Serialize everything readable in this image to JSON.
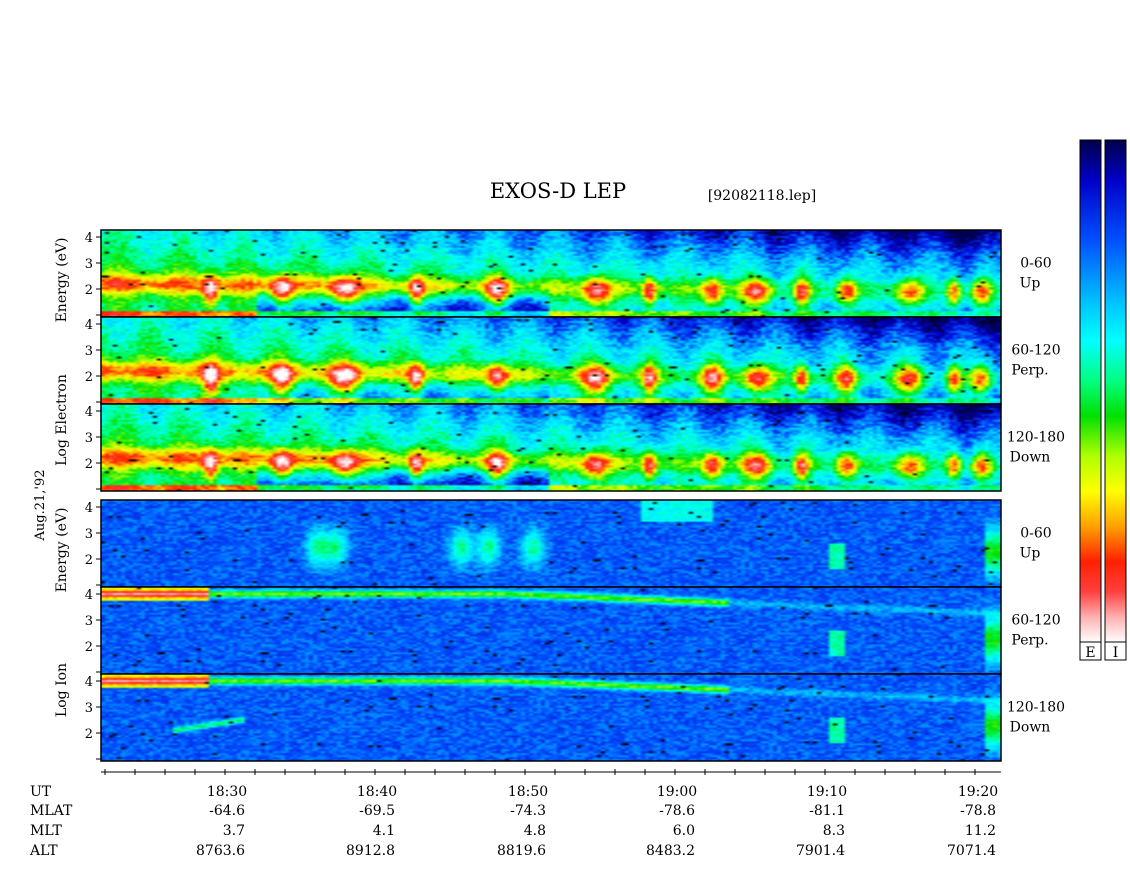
{
  "chart_data": {
    "type": "heatmap",
    "title": "EXOS-D LEP",
    "file_label": "[92082118.lep]",
    "date_label": "Aug.21,'92",
    "x_axis": {
      "time_ticks": [
        "18:30",
        "18:40",
        "18:50",
        "19:00",
        "19:10",
        "19:20"
      ],
      "rows": [
        {
          "label": "UT",
          "values": []
        },
        {
          "label": "MLAT",
          "values": [
            "-64.6",
            "-69.5",
            "-74.3",
            "-78.6",
            "-81.1",
            "-78.8"
          ]
        },
        {
          "label": "MLT",
          "values": [
            "3.7",
            "4.1",
            "4.8",
            "6.0",
            "8.3",
            "11.2"
          ]
        },
        {
          "label": "ALT",
          "values": [
            "8763.6",
            "8912.8",
            "8819.6",
            "8483.2",
            "7901.4",
            "7071.4"
          ]
        }
      ]
    },
    "y_ticks": [
      "1",
      "2",
      "3",
      "4"
    ],
    "groups": [
      {
        "name": "Electron",
        "ylabel_words": [
          "Log",
          "Electron",
          "Energy",
          "(eV)"
        ],
        "panels": [
          {
            "pitch": "0-60",
            "direction": "Up"
          },
          {
            "pitch": "60-120",
            "direction": "Perp."
          },
          {
            "pitch": "120-180",
            "direction": "Down"
          }
        ]
      },
      {
        "name": "Ion",
        "ylabel_words": [
          "Log",
          "Ion",
          "Energy",
          "(eV)"
        ],
        "panels": [
          {
            "pitch": "0-60",
            "direction": "Up"
          },
          {
            "pitch": "60-120",
            "direction": "Perp."
          },
          {
            "pitch": "120-180",
            "direction": "Down"
          }
        ]
      }
    ],
    "colorbars": [
      {
        "label": "E"
      },
      {
        "label": "I"
      }
    ],
    "colormap": [
      "#00004a",
      "#0000c8",
      "#0050ff",
      "#00c8ff",
      "#00ffff",
      "#00ff80",
      "#00e000",
      "#b0ff00",
      "#ffff00",
      "#ffa000",
      "#ff2000",
      "#ff4040",
      "#ffb0b0",
      "#ffffff"
    ]
  }
}
